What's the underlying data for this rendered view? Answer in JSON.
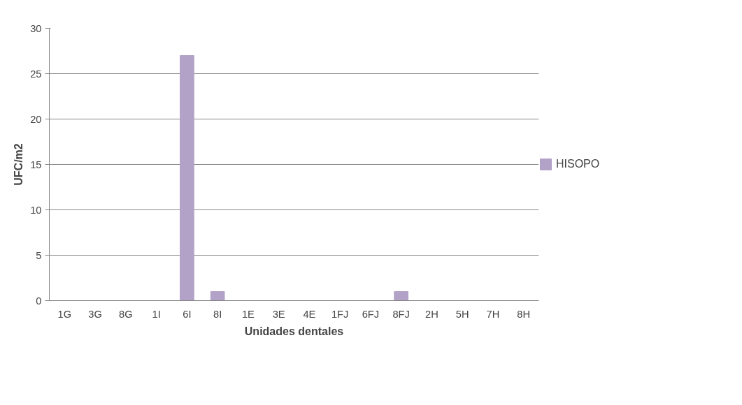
{
  "chart_data": {
    "type": "bar",
    "xlabel": "Unidades dentales",
    "ylabel": "UFC/m2",
    "categories": [
      "1G",
      "3G",
      "8G",
      "1I",
      "6I",
      "8I",
      "1E",
      "3E",
      "4E",
      "1FJ",
      "6FJ",
      "8FJ",
      "2H",
      "5H",
      "7H",
      "8H"
    ],
    "series": [
      {
        "name": "HISOPO",
        "color": "#b3a2c7",
        "values": [
          0,
          0,
          0,
          0,
          27,
          1,
          0,
          0,
          0,
          0,
          0,
          1,
          0,
          0,
          0,
          0
        ]
      }
    ],
    "ylim": [
      0,
      30
    ],
    "yticks": [
      0,
      5,
      10,
      15,
      20,
      25,
      30
    ],
    "grid": "y",
    "legend": "right"
  }
}
